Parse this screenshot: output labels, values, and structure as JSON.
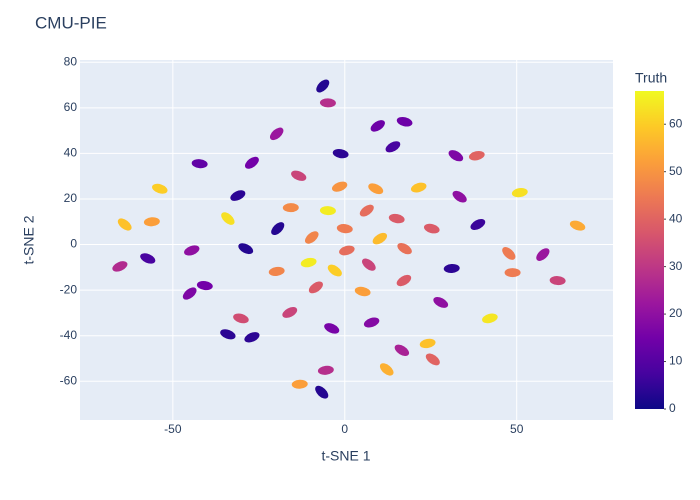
{
  "chart_data": {
    "type": "scatter",
    "title": "CMU-PIE",
    "x_label": "t-SNE 1",
    "y_label": "t-SNE 2",
    "colorbar_title": "Truth",
    "x": [
      -6.4,
      -4.9,
      -19.8,
      -42.2,
      -27,
      -1.2,
      9.6,
      17.4,
      14,
      -53.8,
      -31.1,
      -13.4,
      -1.5,
      9,
      21.5,
      32.3,
      38.4,
      33.4,
      50.9,
      -64,
      -56.1,
      -34,
      -15.7,
      -19.5,
      -4.9,
      -9.6,
      0,
      6.4,
      15.1,
      10.2,
      25.3,
      38.7,
      67.7,
      -65.4,
      -57.3,
      -44.5,
      -28.8,
      0.6,
      17.4,
      -10.5,
      -2.9,
      -19.8,
      7,
      31.1,
      47.7,
      48.8,
      57.6,
      61.9,
      -45.1,
      -40.7,
      -8.4,
      5.2,
      17.2,
      -30.2,
      -16,
      -34,
      -27,
      -3.8,
      7.8,
      27.9,
      42.2,
      16.6,
      24.1,
      25.6,
      -5.5,
      12.2,
      -13.1,
      -6.7
    ],
    "values": [
      69.6,
      62.2,
      48.6,
      35.5,
      35.9,
      39.9,
      52.1,
      53.9,
      42.9,
      24.5,
      21.5,
      30.2,
      25.4,
      24.5,
      25,
      39,
      39,
      21,
      22.8,
      8.8,
      10,
      11.4,
      16.2,
      7,
      14.9,
      3.1,
      7,
      14.9,
      11.4,
      2.6,
      7,
      8.8,
      8.3,
      -9.6,
      -6.1,
      -2.6,
      -1.8,
      -2.6,
      -1.8,
      -7.9,
      -11.4,
      -11.8,
      -8.8,
      -10.5,
      -3.9,
      -12.3,
      -4.4,
      -15.8,
      -21.5,
      -18,
      -18.8,
      -20.6,
      -15.8,
      -32.4,
      -29.8,
      -39.4,
      -40.7,
      -36.8,
      -34.2,
      -25.4,
      -32.4,
      -46.4,
      -43.4,
      -50.4,
      -55.2,
      -54.8,
      -61.3,
      -64.8
    ],
    "color_values": [
      3,
      28,
      22,
      12,
      15,
      4,
      14,
      14,
      8,
      60,
      4,
      33,
      50,
      52,
      58,
      17,
      40,
      20,
      63,
      58,
      52,
      63,
      48,
      3,
      65,
      47,
      45,
      42,
      38,
      57,
      38,
      6,
      54,
      27,
      8,
      20,
      3,
      42,
      43,
      65,
      60,
      47,
      33,
      4,
      45,
      45,
      22,
      33,
      17,
      15,
      38,
      52,
      38,
      35,
      33,
      4,
      4,
      16,
      18,
      20,
      64,
      25,
      58,
      40,
      28,
      55,
      52,
      3
    ],
    "colorscale": [
      "#0d0887",
      "#46039f",
      "#7201a8",
      "#9c179e",
      "#bd3786",
      "#d8576b",
      "#ed7953",
      "#fb9f3a",
      "#fdca26",
      "#f0f921"
    ],
    "clim": [
      0,
      67
    ],
    "cticks": [
      0,
      10,
      20,
      30,
      40,
      50,
      60
    ],
    "xlim": [
      -77,
      78
    ],
    "xticks": [
      -50,
      0,
      50
    ],
    "ylim": [
      -77,
      81
    ],
    "yticks": [
      -60,
      -40,
      -20,
      0,
      20,
      40,
      60,
      80
    ],
    "grid": true
  }
}
